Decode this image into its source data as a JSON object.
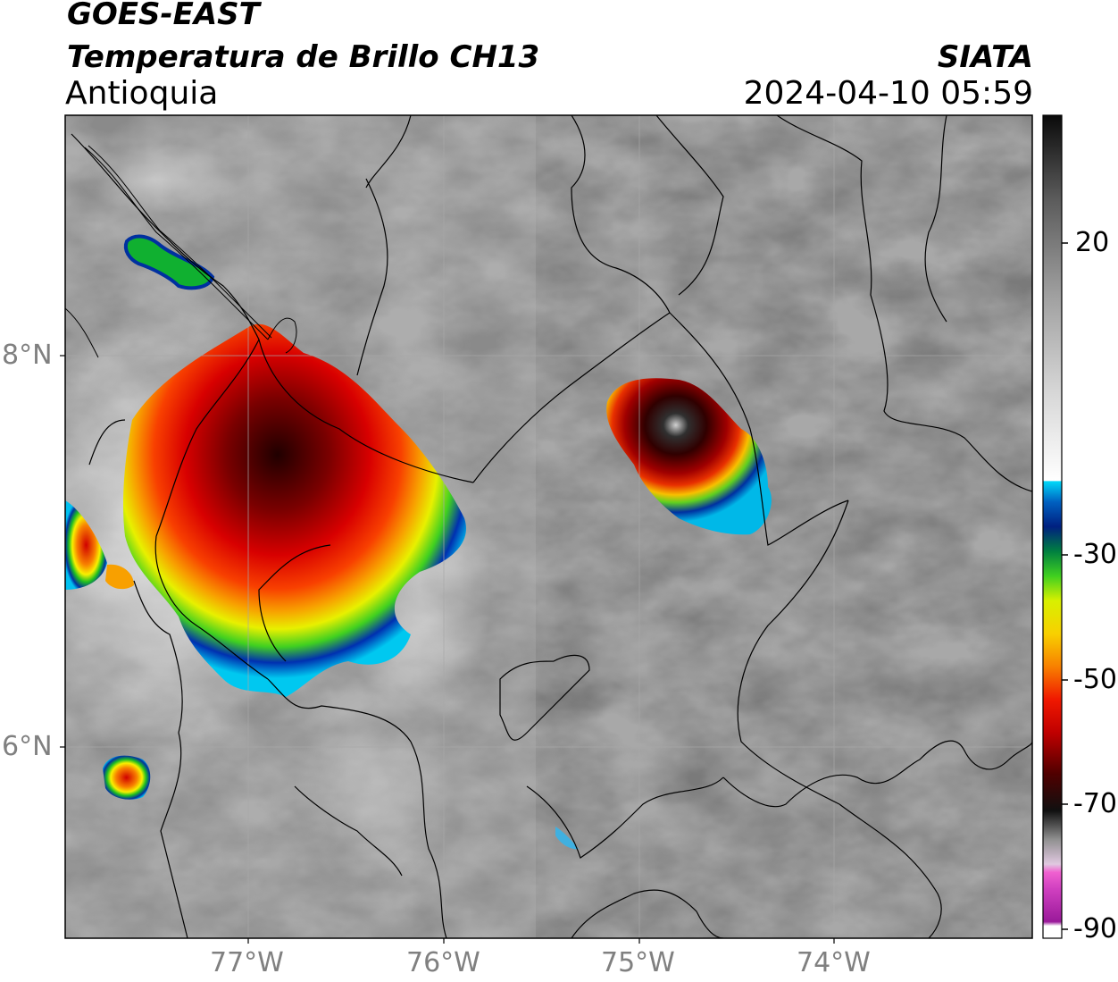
{
  "header": {
    "satellite": "GOES-EAST",
    "product": "Temperatura de Brillo CH13",
    "region": "Antioquia",
    "agency": "SIATA",
    "datetime": "2024-04-10 05:59"
  },
  "map": {
    "lon_ticks": [
      "77°W",
      "76°W",
      "75°W",
      "74°W"
    ],
    "lat_ticks": [
      "8°N",
      "6°N"
    ],
    "extent": {
      "lon": [
        -77.94,
        -73.0
      ],
      "lat": [
        5.07,
        9.28
      ]
    }
  },
  "colorbar": {
    "tick_labels": [
      "20",
      "-30",
      "-50",
      "-70",
      "-90"
    ],
    "range": [
      -90,
      40
    ],
    "colors": {
      "warm_gray_high": "#1a1a1a",
      "white_mid": "#ffffff",
      "cyan": "#00d8f8",
      "blue": "#0020a0",
      "green": "#10c020",
      "yellow": "#f8f000",
      "orange": "#f89000",
      "red": "#e00000",
      "dark_red": "#400000",
      "magenta": "#e040c0",
      "purple": "#a020a0"
    }
  },
  "features": [
    {
      "label": "storm-west",
      "min_temp_c": -70
    },
    {
      "label": "storm-east",
      "min_temp_c": -78
    },
    {
      "label": "storm-small-northwest",
      "min_temp_c": -35
    },
    {
      "label": "storm-small-southwest",
      "min_temp_c": -60
    }
  ]
}
